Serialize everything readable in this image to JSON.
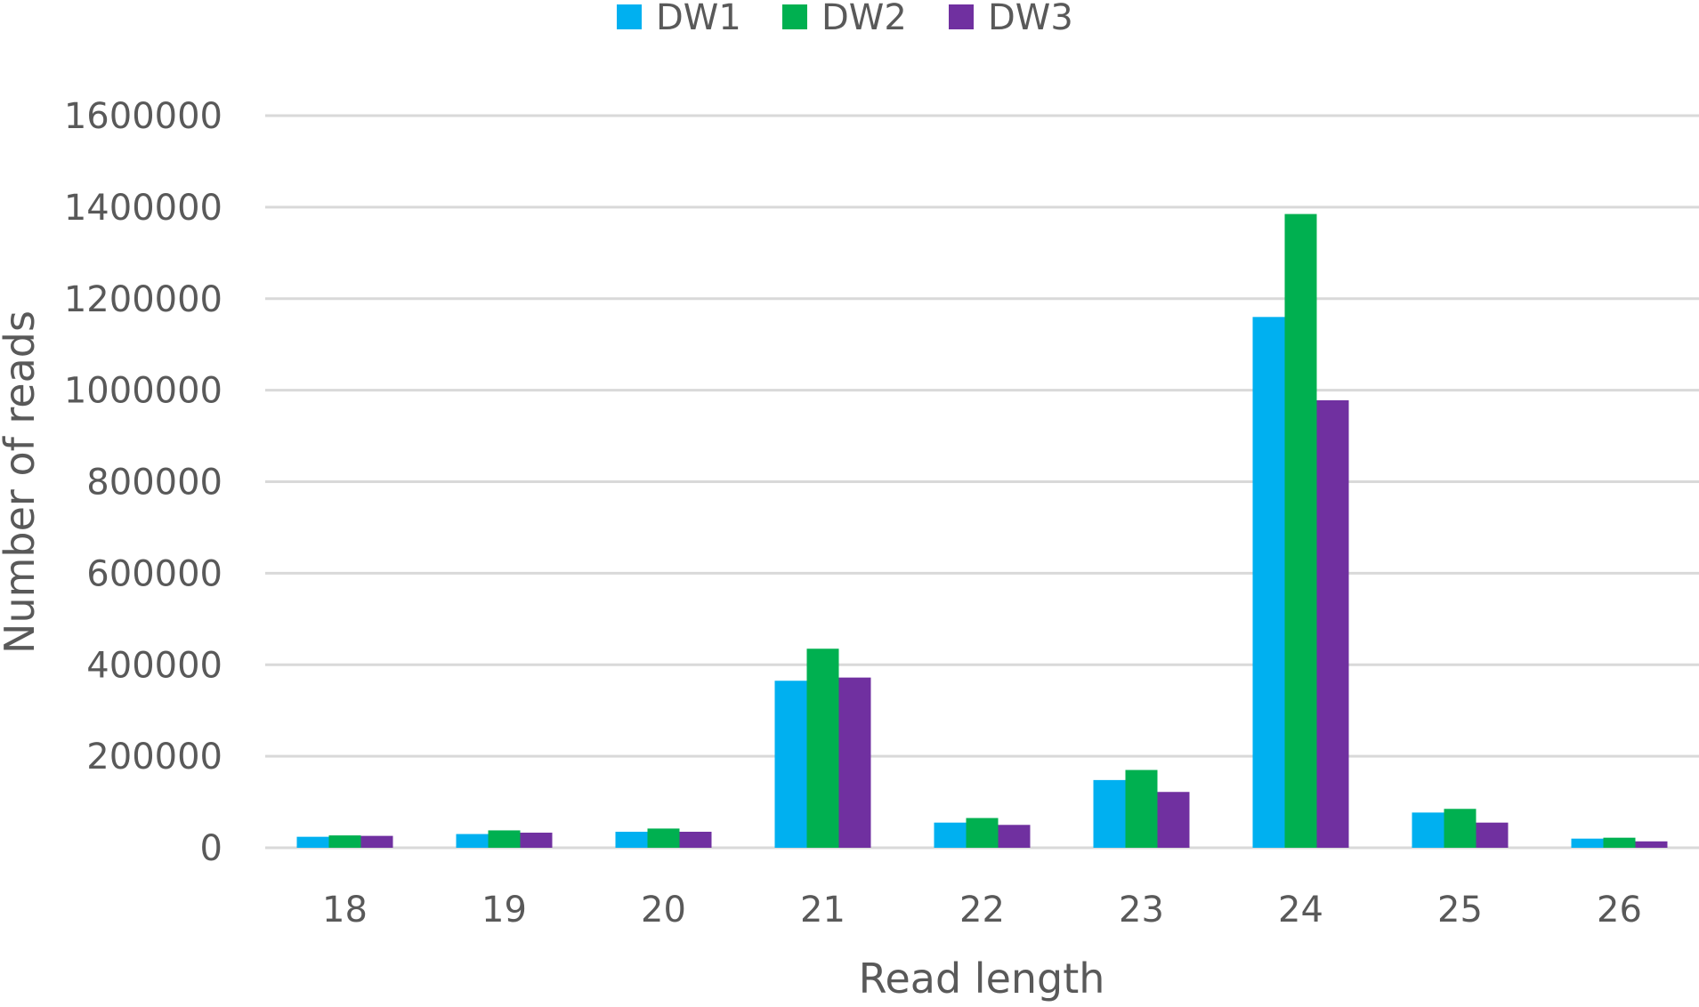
{
  "chart_data": {
    "type": "bar",
    "title": "",
    "xlabel": "Read length",
    "ylabel": "Number  of reads",
    "categories": [
      "18",
      "19",
      "20",
      "21",
      "22",
      "23",
      "24",
      "25",
      "26"
    ],
    "series": [
      {
        "name": "DW1",
        "color": "#00b0f0",
        "values": [
          24000,
          30000,
          35000,
          365000,
          55000,
          148000,
          1160000,
          77000,
          20000
        ]
      },
      {
        "name": "DW2",
        "color": "#00b050",
        "values": [
          27000,
          38000,
          42000,
          435000,
          65000,
          170000,
          1385000,
          85000,
          22000
        ]
      },
      {
        "name": "DW3",
        "color": "#7030a0",
        "values": [
          26000,
          33000,
          35000,
          372000,
          50000,
          122000,
          978000,
          55000,
          14000
        ]
      }
    ],
    "ylim": [
      0,
      1600000
    ],
    "yticks": [
      "0",
      "200000",
      "400000",
      "600000",
      "800000",
      "1000000",
      "1200000",
      "1400000",
      "1600000"
    ],
    "grid": true,
    "legend_position": "top-center"
  }
}
